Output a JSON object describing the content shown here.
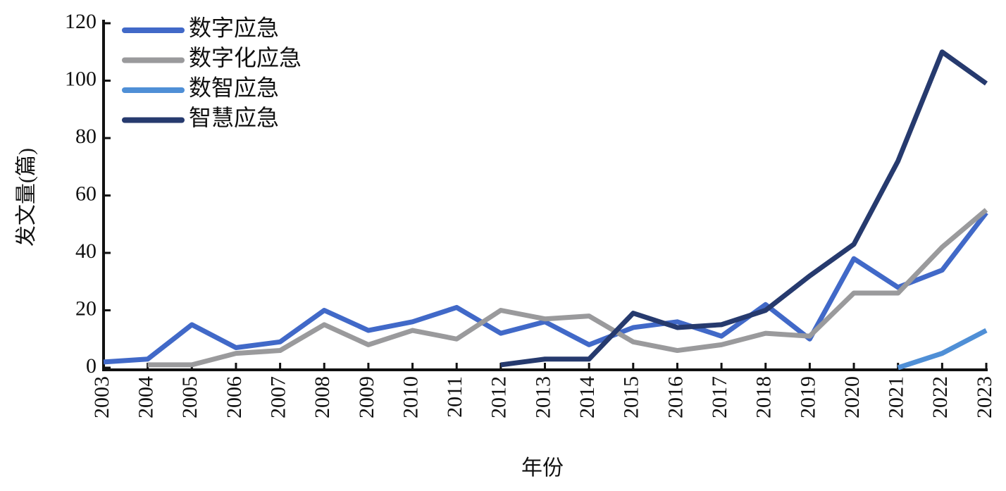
{
  "chart_data": {
    "type": "line",
    "x_label": "年份",
    "y_label": "发文量(篇)",
    "categories": [
      "2003",
      "2004",
      "2005",
      "2006",
      "2007",
      "2008",
      "2009",
      "2010",
      "2011",
      "2012",
      "2013",
      "2014",
      "2015",
      "2016",
      "2017",
      "2018",
      "2019",
      "2020",
      "2021",
      "2022",
      "2023"
    ],
    "series": [
      {
        "name": "数字应急",
        "color": "#4169c8",
        "values": [
          2,
          3,
          15,
          7,
          9,
          20,
          13,
          16,
          21,
          12,
          16,
          8,
          14,
          16,
          11,
          22,
          10,
          38,
          28,
          34,
          54
        ]
      },
      {
        "name": "数字化应急",
        "color": "#9a9a9c",
        "values": [
          null,
          1,
          1,
          5,
          6,
          15,
          8,
          13,
          10,
          20,
          17,
          18,
          9,
          6,
          8,
          12,
          11,
          26,
          26,
          42,
          55
        ]
      },
      {
        "name": "数智应急",
        "color": "#4f8fd6",
        "values": [
          null,
          null,
          null,
          null,
          null,
          null,
          null,
          null,
          null,
          null,
          null,
          null,
          null,
          null,
          null,
          null,
          null,
          null,
          0,
          5,
          13
        ]
      },
      {
        "name": "智慧应急",
        "color": "#263a6e",
        "values": [
          null,
          null,
          null,
          null,
          null,
          null,
          null,
          null,
          null,
          1,
          3,
          3,
          19,
          14,
          15,
          20,
          32,
          43,
          72,
          110,
          99
        ]
      }
    ],
    "ylim": [
      0,
      120
    ],
    "yticks": [
      0,
      20,
      40,
      60,
      80,
      100,
      120
    ],
    "legend": "upper left"
  }
}
